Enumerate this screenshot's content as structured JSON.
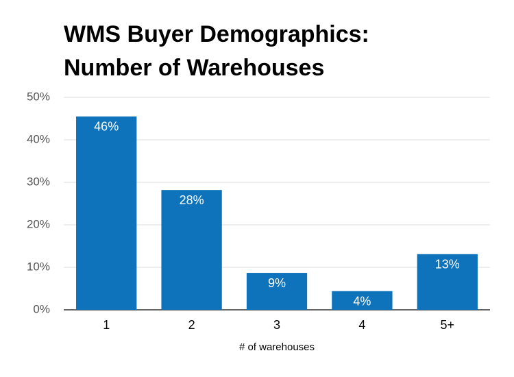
{
  "chart_data": {
    "type": "bar",
    "title": [
      "WMS Buyer Demographics:",
      "Number of Warehouses"
    ],
    "x_label": "# of warehouses",
    "categories": [
      "1",
      "2",
      "3",
      "4",
      "5+"
    ],
    "values": [
      45.5,
      28.2,
      8.7,
      4.4,
      13.1
    ],
    "value_labels": [
      "46%",
      "28%",
      "9%",
      "4%",
      "13%"
    ],
    "color": "#0f73bb",
    "ylim": [
      0,
      50
    ],
    "yticks": [
      {
        "value": 0,
        "label": "0%"
      },
      {
        "value": 10,
        "label": "10%"
      },
      {
        "value": 20,
        "label": "20%"
      },
      {
        "value": 30,
        "label": "30%"
      },
      {
        "value": 40,
        "label": "40%"
      },
      {
        "value": 50,
        "label": "50%"
      }
    ],
    "grid": true
  }
}
